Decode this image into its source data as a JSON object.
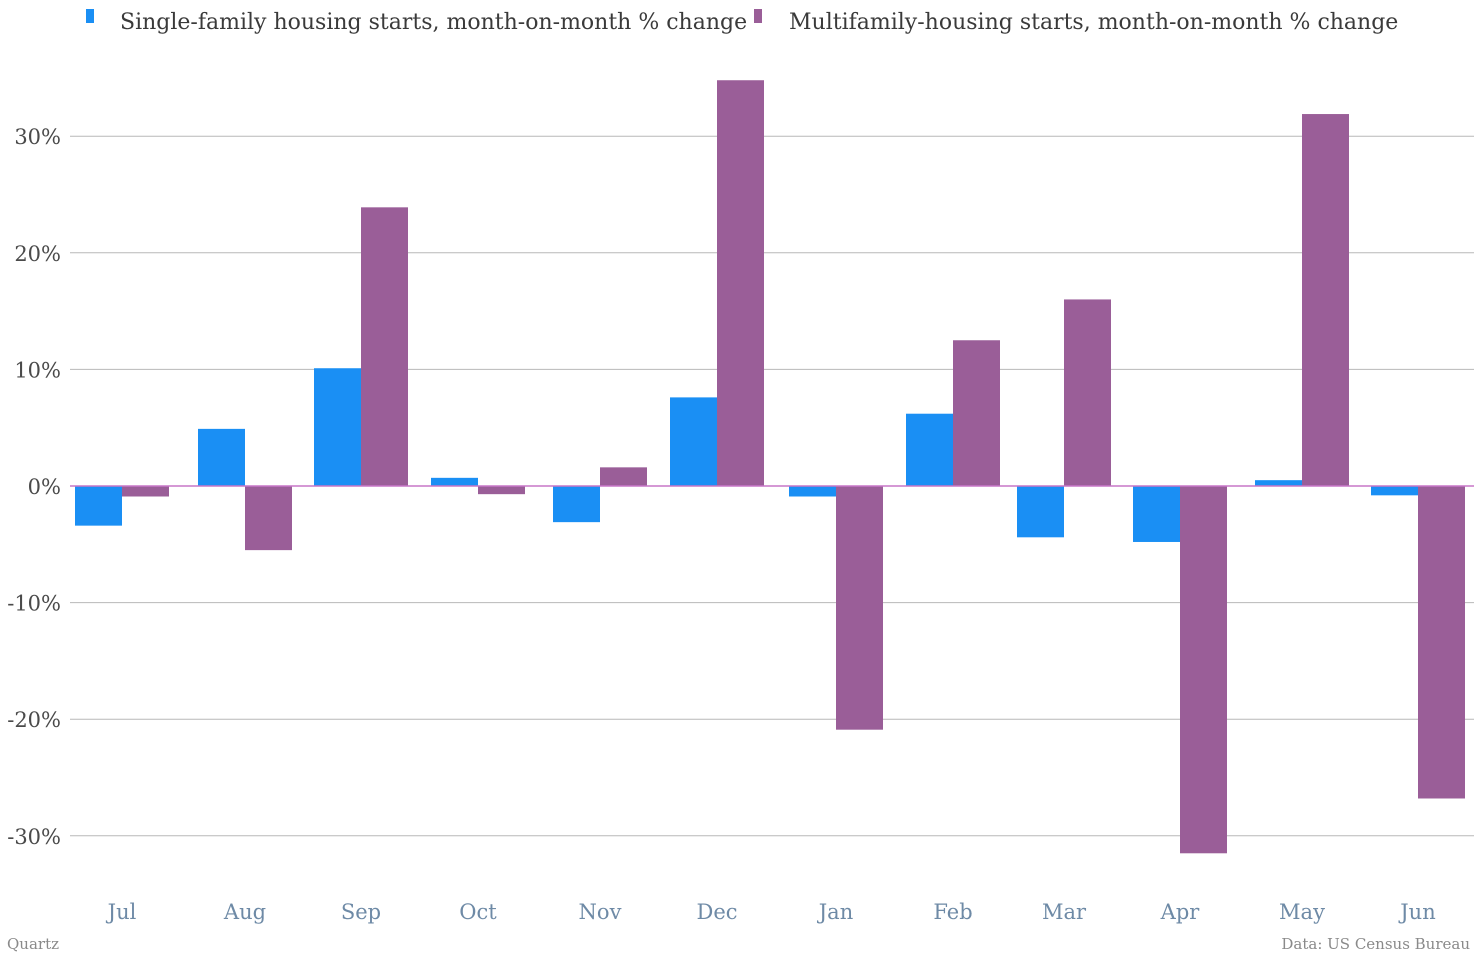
{
  "chart_data": {
    "type": "bar",
    "categories": [
      "Jul",
      "Aug",
      "Sep",
      "Oct",
      "Nov",
      "Dec",
      "Jan",
      "Feb",
      "Mar",
      "Apr",
      "May",
      "Jun"
    ],
    "series": [
      {
        "name": "Single-family housing starts, month-on-month % change",
        "color": "#1a8ff4",
        "values": [
          -3.4,
          4.9,
          10.1,
          0.7,
          -3.1,
          7.6,
          -0.9,
          6.2,
          -4.4,
          -4.8,
          0.5,
          -0.8
        ]
      },
      {
        "name": "Multifamily-housing starts, month-on-month % change",
        "color": "#9a5e98",
        "values": [
          -0.9,
          -5.5,
          23.9,
          -0.7,
          1.6,
          34.8,
          -20.9,
          12.5,
          16.0,
          -31.5,
          31.9,
          -26.8
        ]
      }
    ],
    "ylim": [
      -34,
      38
    ],
    "yticks": [
      30,
      20,
      10,
      0,
      -10,
      -20,
      -30
    ],
    "ytick_labels": [
      "30%",
      "20%",
      "10%",
      "0%",
      "-10%",
      "-20%",
      "-30%"
    ],
    "grid": true,
    "legend_position": "top",
    "zero_line_color": "#c776c7",
    "grid_color": "#b8b8b8"
  },
  "footer": {
    "source_left": "Quartz",
    "source_right": "Data: US Census Bureau"
  }
}
